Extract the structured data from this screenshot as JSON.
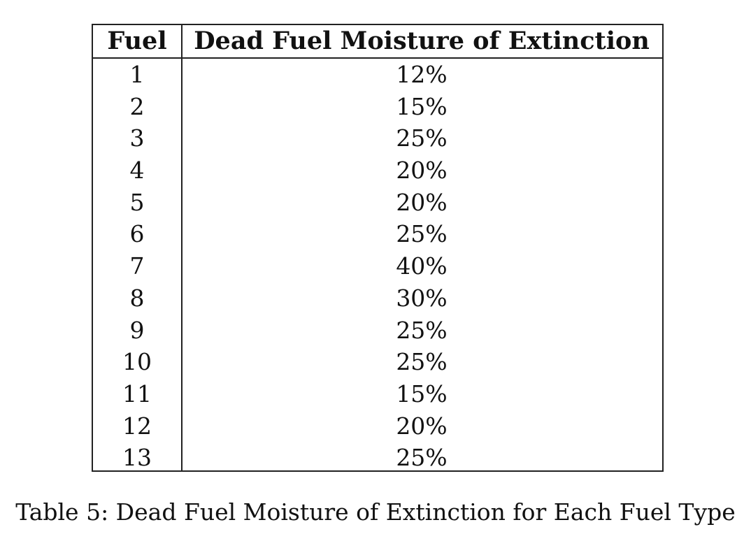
{
  "table": {
    "headers": {
      "fuel": "Fuel",
      "moisture": "Dead Fuel Moisture of Extinction"
    },
    "rows": [
      {
        "fuel": "1",
        "moisture": "12%"
      },
      {
        "fuel": "2",
        "moisture": "15%"
      },
      {
        "fuel": "3",
        "moisture": "25%"
      },
      {
        "fuel": "4",
        "moisture": "20%"
      },
      {
        "fuel": "5",
        "moisture": "20%"
      },
      {
        "fuel": "6",
        "moisture": "25%"
      },
      {
        "fuel": "7",
        "moisture": "40%"
      },
      {
        "fuel": "8",
        "moisture": "30%"
      },
      {
        "fuel": "9",
        "moisture": "25%"
      },
      {
        "fuel": "10",
        "moisture": "25%"
      },
      {
        "fuel": "11",
        "moisture": "15%"
      },
      {
        "fuel": "12",
        "moisture": "20%"
      },
      {
        "fuel": "13",
        "moisture": "25%"
      }
    ]
  },
  "caption": "Table 5: Dead Fuel Moisture of Extinction for Each Fuel Type"
}
